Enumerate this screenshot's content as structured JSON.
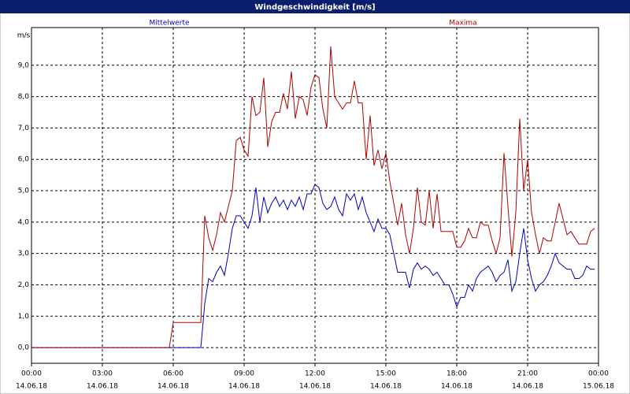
{
  "chart_data": {
    "type": "line",
    "title": "Windgeschwindigkeit [m/s]",
    "y_label": "m/s",
    "x": [
      0,
      350,
      360,
      370,
      380,
      390,
      400,
      410,
      420,
      430,
      440,
      450,
      460,
      470,
      480,
      490,
      500,
      510,
      520,
      530,
      540,
      550,
      560,
      570,
      580,
      590,
      600,
      610,
      620,
      630,
      640,
      650,
      660,
      670,
      680,
      690,
      700,
      710,
      720,
      730,
      740,
      750,
      760,
      770,
      780,
      790,
      800,
      810,
      820,
      830,
      840,
      850,
      860,
      870,
      880,
      890,
      900,
      910,
      920,
      930,
      940,
      950,
      960,
      970,
      980,
      990,
      1000,
      1010,
      1020,
      1030,
      1040,
      1050,
      1060,
      1070,
      1080,
      1090,
      1100,
      1110,
      1120,
      1130,
      1140,
      1150,
      1160,
      1170,
      1180,
      1190,
      1200,
      1210,
      1220,
      1230,
      1240,
      1250,
      1260,
      1270,
      1280,
      1290,
      1300,
      1310,
      1320,
      1330,
      1340,
      1350,
      1360,
      1370,
      1380,
      1390,
      1400,
      1410,
      1420,
      1430
    ],
    "series": [
      {
        "name": "Mittelwerte",
        "color": "#0000c0",
        "values": [
          0,
          0,
          0,
          0,
          0,
          0,
          0,
          0,
          0,
          0,
          1.4,
          2.2,
          2.1,
          2.4,
          2.6,
          2.3,
          3.0,
          3.8,
          4.2,
          4.2,
          4.0,
          3.8,
          4.2,
          5.1,
          4.0,
          4.8,
          4.3,
          4.6,
          4.8,
          4.5,
          4.7,
          4.4,
          4.7,
          4.5,
          4.8,
          4.4,
          4.9,
          4.9,
          5.2,
          5.1,
          4.6,
          4.4,
          4.5,
          4.8,
          4.4,
          4.2,
          4.9,
          4.7,
          4.9,
          4.4,
          4.8,
          4.3,
          4.0,
          3.7,
          4.1,
          3.8,
          3.8,
          3.6,
          3.0,
          2.4,
          2.4,
          2.4,
          1.9,
          2.5,
          2.7,
          2.5,
          2.6,
          2.5,
          2.3,
          2.4,
          2.2,
          2.0,
          2.0,
          1.7,
          1.3,
          1.6,
          1.6,
          2.0,
          1.8,
          2.2,
          2.4,
          2.5,
          2.6,
          2.4,
          2.1,
          2.3,
          2.4,
          2.8,
          1.8,
          2.1,
          3.0,
          3.8,
          2.8,
          2.2,
          1.8,
          2.0,
          2.1,
          2.3,
          2.6,
          3.0,
          2.7,
          2.6,
          2.5,
          2.5,
          2.2,
          2.2,
          2.3,
          2.6,
          2.5,
          2.5
        ]
      },
      {
        "name": "Maxima",
        "color": "#b00000",
        "values": [
          0,
          0,
          0.8,
          0.8,
          0.8,
          0.8,
          0.8,
          0.8,
          0.8,
          0.8,
          4.2,
          3.5,
          3.1,
          3.6,
          4.3,
          4.0,
          4.5,
          5.0,
          6.6,
          6.7,
          6.3,
          6.1,
          8.0,
          7.4,
          7.5,
          8.6,
          6.4,
          7.2,
          7.5,
          7.5,
          8.1,
          7.6,
          8.8,
          7.3,
          8.0,
          7.9,
          7.4,
          8.3,
          8.7,
          8.6,
          7.6,
          7.0,
          9.6,
          8.0,
          7.8,
          7.6,
          7.8,
          7.8,
          8.5,
          7.8,
          7.8,
          6.0,
          7.4,
          5.8,
          6.3,
          5.7,
          6.2,
          5.3,
          4.6,
          3.9,
          4.6,
          3.6,
          3.0,
          3.8,
          5.1,
          4.0,
          3.9,
          5.0,
          3.8,
          4.9,
          3.7,
          3.7,
          3.7,
          3.7,
          3.2,
          3.2,
          3.4,
          3.8,
          3.5,
          3.5,
          4.0,
          3.9,
          3.9,
          3.4,
          3.0,
          3.5,
          6.2,
          4.5,
          2.9,
          4.3,
          7.3,
          5.0,
          6.0,
          4.3,
          3.6,
          3.0,
          3.5,
          3.4,
          3.4,
          4.0,
          4.6,
          4.1,
          3.6,
          3.7,
          3.5,
          3.3,
          3.3,
          3.3,
          3.7,
          3.8
        ]
      }
    ],
    "xlim": [
      0,
      1440
    ],
    "xticks": [
      {
        "value": 0,
        "label": "00:00"
      },
      {
        "value": 180,
        "label": "03:00"
      },
      {
        "value": 360,
        "label": "06:00"
      },
      {
        "value": 540,
        "label": "09:00"
      },
      {
        "value": 720,
        "label": "12:00"
      },
      {
        "value": 900,
        "label": "15:00"
      },
      {
        "value": 1080,
        "label": "18:00"
      },
      {
        "value": 1260,
        "label": "21:00"
      },
      {
        "value": 1440,
        "label": "00:00"
      }
    ],
    "xtick_dates": [
      "14.06.18",
      "14.06.18",
      "14.06.18",
      "14.06.18",
      "14.06.18",
      "14.06.18",
      "14.06.18",
      "14.06.18",
      "15.06.18"
    ],
    "ylim": [
      -0.5,
      10.2
    ],
    "yticks": [
      {
        "value": 0,
        "label": "0,0"
      },
      {
        "value": 1,
        "label": "1,0"
      },
      {
        "value": 2,
        "label": "2,0"
      },
      {
        "value": 3,
        "label": "3,0"
      },
      {
        "value": 4,
        "label": "4,0"
      },
      {
        "value": 5,
        "label": "5,0"
      },
      {
        "value": 6,
        "label": "6,0"
      },
      {
        "value": 7,
        "label": "7,0"
      },
      {
        "value": 8,
        "label": "8,0"
      },
      {
        "value": 9,
        "label": "9,0"
      }
    ],
    "grid": true
  }
}
